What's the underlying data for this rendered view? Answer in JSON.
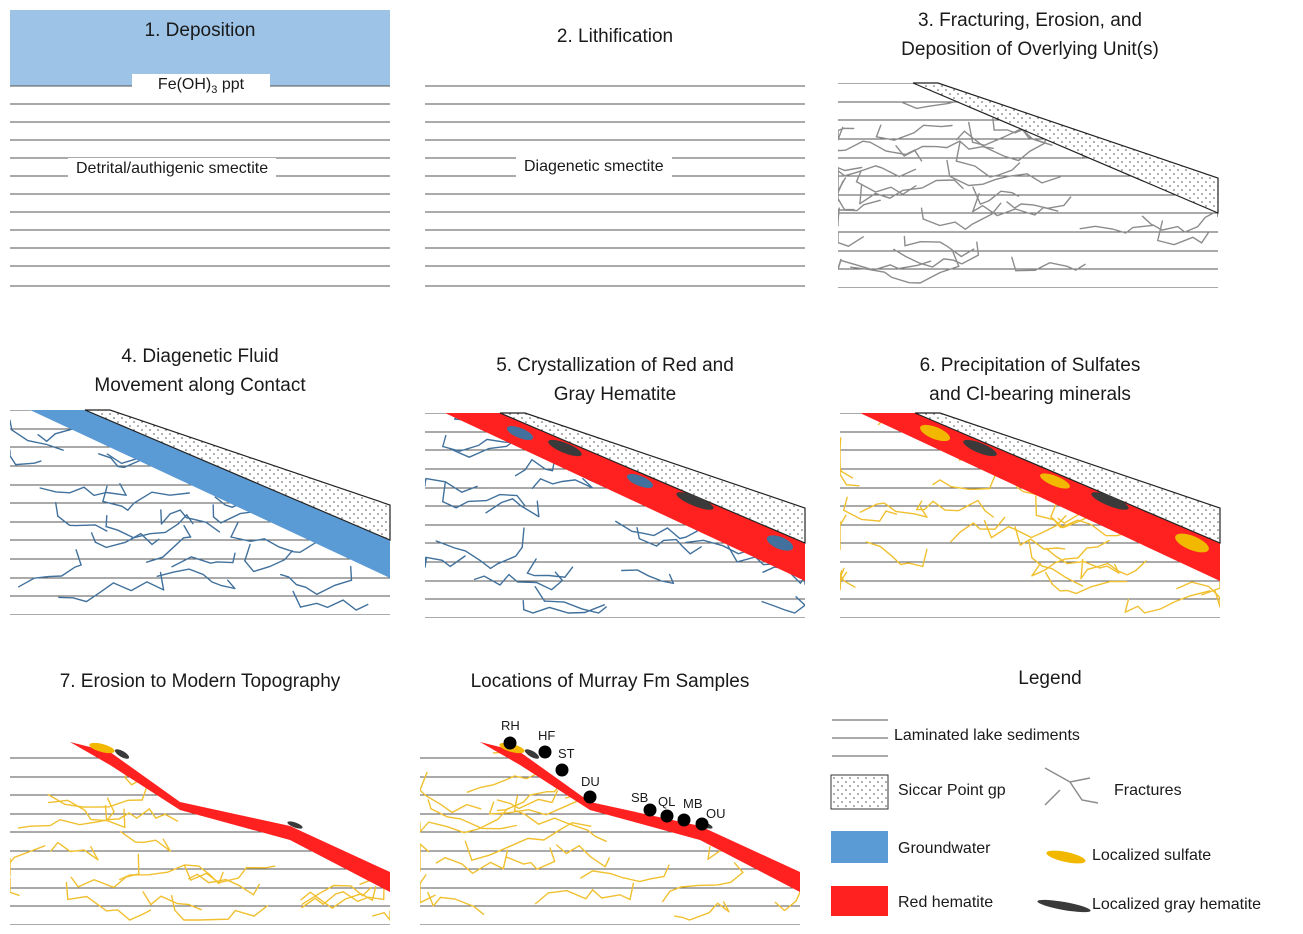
{
  "panels": {
    "p1": {
      "title": "1. Deposition",
      "precipitate_label": "Fe(OH)",
      "precipitate_sub": "3",
      "precipitate_suffix": " ppt",
      "smectite_label": "Detrital/authigenic smectite"
    },
    "p2": {
      "title": "2. Lithification",
      "smectite_label": "Diagenetic smectite"
    },
    "p3": {
      "title_line1": "3. Fracturing, Erosion, and",
      "title_line2": "Deposition of Overlying Unit(s)"
    },
    "p4": {
      "title_line1": "4. Diagenetic Fluid",
      "title_line2": "Movement along Contact"
    },
    "p5": {
      "title_line1": "5. Crystallization of Red and",
      "title_line2": "Gray Hematite"
    },
    "p6": {
      "title_line1": "6. Precipitation of Sulfates",
      "title_line2": "and Cl-bearing minerals"
    },
    "p7": {
      "title": "7. Erosion to Modern Topography"
    },
    "p8": {
      "title": "Locations of Murray Fm Samples",
      "samples": [
        "RH",
        "HF",
        "ST",
        "DU",
        "SB",
        "QL",
        "MB",
        "OU"
      ]
    }
  },
  "legend": {
    "title": "Legend",
    "laminated": "Laminated lake sediments",
    "siccar": "Siccar Point gp",
    "fractures": "Fractures",
    "groundwater": "Groundwater",
    "sulfate": "Localized sulfate",
    "red_hematite": "Red hematite",
    "gray_hematite": "Localized gray hematite"
  },
  "colors": {
    "groundwater": "#9dc3e6",
    "groundwater_band": "#5b9bd5",
    "red_hematite": "#ff2020",
    "gray_hematite": "#3a3a3a",
    "sulfate": "#f2b800",
    "fracture_gray": "#8c8c8c",
    "fracture_blue": "#41719c",
    "fracture_yellow": "#f0c030"
  }
}
